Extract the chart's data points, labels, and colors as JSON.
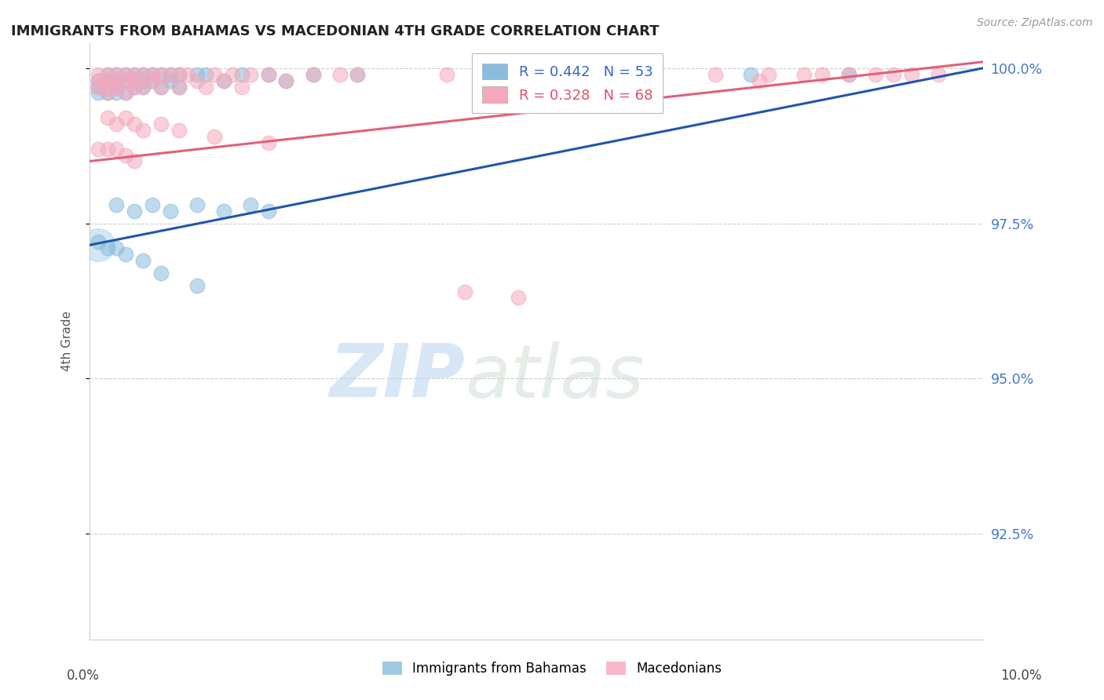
{
  "title": "IMMIGRANTS FROM BAHAMAS VS MACEDONIAN 4TH GRADE CORRELATION CHART",
  "source": "Source: ZipAtlas.com",
  "ylabel_left": "4th Grade",
  "y_tick_labels": [
    "100.0%",
    "97.5%",
    "95.0%",
    "92.5%"
  ],
  "y_tick_values": [
    1.0,
    0.975,
    0.95,
    0.925
  ],
  "x_range": [
    0.0,
    0.1
  ],
  "y_range": [
    0.908,
    1.004
  ],
  "blue_R": 0.442,
  "blue_N": 53,
  "pink_R": 0.328,
  "pink_N": 68,
  "blue_color": "#89bcde",
  "pink_color": "#f5a8bc",
  "blue_line_color": "#2255aa",
  "pink_line_color": "#e0607a",
  "watermark_zip": "ZIP",
  "watermark_atlas": "atlas",
  "blue_scatter_x": [
    0.001,
    0.001,
    0.001,
    0.002,
    0.002,
    0.002,
    0.002,
    0.003,
    0.003,
    0.003,
    0.003,
    0.004,
    0.004,
    0.004,
    0.005,
    0.005,
    0.005,
    0.006,
    0.006,
    0.006,
    0.007,
    0.007,
    0.008,
    0.008,
    0.009,
    0.009,
    0.01,
    0.01,
    0.012,
    0.013,
    0.015,
    0.017,
    0.02,
    0.022,
    0.025,
    0.03,
    0.003,
    0.005,
    0.007,
    0.009,
    0.012,
    0.015,
    0.018,
    0.02,
    0.001,
    0.002,
    0.003,
    0.004,
    0.006,
    0.008,
    0.012,
    0.074,
    0.085
  ],
  "blue_scatter_y": [
    0.998,
    0.997,
    0.996,
    0.999,
    0.998,
    0.997,
    0.996,
    0.999,
    0.998,
    0.997,
    0.996,
    0.999,
    0.998,
    0.996,
    0.999,
    0.998,
    0.997,
    0.999,
    0.998,
    0.997,
    0.999,
    0.998,
    0.999,
    0.997,
    0.999,
    0.998,
    0.999,
    0.997,
    0.999,
    0.999,
    0.998,
    0.999,
    0.999,
    0.998,
    0.999,
    0.999,
    0.978,
    0.977,
    0.978,
    0.977,
    0.978,
    0.977,
    0.978,
    0.977,
    0.972,
    0.971,
    0.971,
    0.97,
    0.969,
    0.967,
    0.965,
    0.999,
    0.999
  ],
  "pink_scatter_x": [
    0.001,
    0.001,
    0.001,
    0.002,
    0.002,
    0.002,
    0.002,
    0.003,
    0.003,
    0.003,
    0.004,
    0.004,
    0.004,
    0.005,
    0.005,
    0.005,
    0.006,
    0.006,
    0.007,
    0.007,
    0.008,
    0.008,
    0.009,
    0.01,
    0.01,
    0.011,
    0.012,
    0.013,
    0.014,
    0.015,
    0.016,
    0.017,
    0.018,
    0.02,
    0.022,
    0.025,
    0.028,
    0.002,
    0.003,
    0.004,
    0.005,
    0.006,
    0.008,
    0.01,
    0.014,
    0.02,
    0.001,
    0.002,
    0.003,
    0.004,
    0.005,
    0.03,
    0.04,
    0.05,
    0.055,
    0.042,
    0.048,
    0.06,
    0.07,
    0.08,
    0.085,
    0.09,
    0.092,
    0.095,
    0.075,
    0.082,
    0.076,
    0.088
  ],
  "pink_scatter_y": [
    0.999,
    0.998,
    0.997,
    0.999,
    0.998,
    0.997,
    0.996,
    0.999,
    0.998,
    0.997,
    0.999,
    0.998,
    0.996,
    0.999,
    0.998,
    0.997,
    0.999,
    0.997,
    0.999,
    0.998,
    0.999,
    0.997,
    0.999,
    0.999,
    0.997,
    0.999,
    0.998,
    0.997,
    0.999,
    0.998,
    0.999,
    0.997,
    0.999,
    0.999,
    0.998,
    0.999,
    0.999,
    0.992,
    0.991,
    0.992,
    0.991,
    0.99,
    0.991,
    0.99,
    0.989,
    0.988,
    0.987,
    0.987,
    0.987,
    0.986,
    0.985,
    0.999,
    0.999,
    0.999,
    0.999,
    0.964,
    0.963,
    0.999,
    0.999,
    0.999,
    0.999,
    0.999,
    0.999,
    0.999,
    0.998,
    0.999,
    0.999,
    0.999
  ],
  "blue_line_x0": 0.0,
  "blue_line_y0": 0.9715,
  "blue_line_x1": 0.1,
  "blue_line_y1": 1.0,
  "pink_line_x0": 0.0,
  "pink_line_y0": 0.985,
  "pink_line_x1": 0.1,
  "pink_line_y1": 1.001
}
